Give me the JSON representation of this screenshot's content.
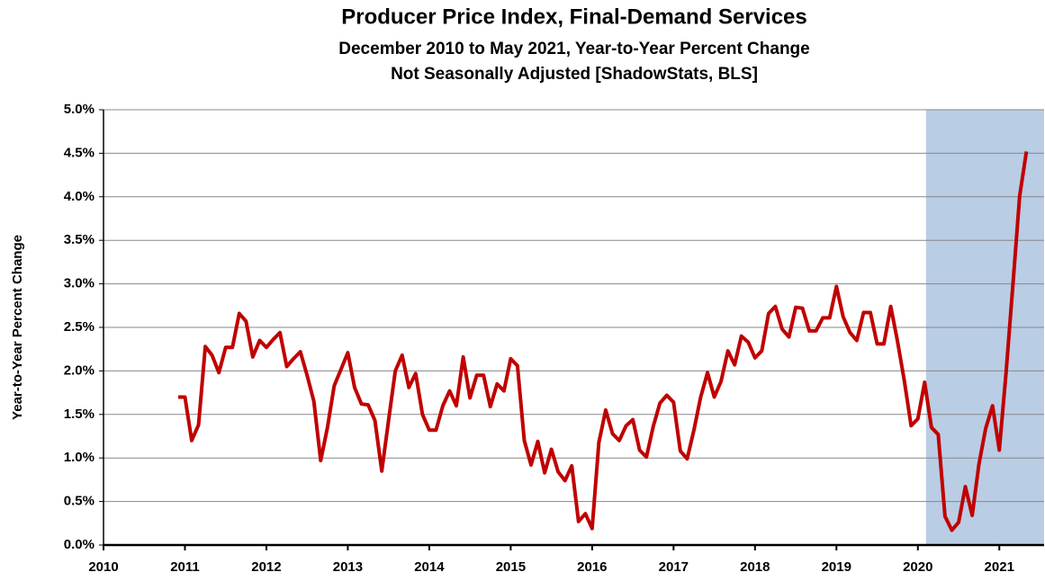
{
  "chart_data": {
    "type": "line",
    "title": "Producer Price Index, Final-Demand Services",
    "subtitle": [
      "December 2010 to May 2021, Year-to-Year Percent Change",
      "Not Seasonally Adjusted  [ShadowStats, BLS]"
    ],
    "y_label": "Year-to-Year Percent Change",
    "x": [
      2010.917,
      2011,
      2011.083,
      2011.167,
      2011.25,
      2011.333,
      2011.417,
      2011.5,
      2011.583,
      2011.667,
      2011.75,
      2011.833,
      2011.917,
      2012,
      2012.083,
      2012.167,
      2012.25,
      2012.333,
      2012.417,
      2012.5,
      2012.583,
      2012.667,
      2012.75,
      2012.833,
      2012.917,
      2013,
      2013.083,
      2013.167,
      2013.25,
      2013.333,
      2013.417,
      2013.5,
      2013.583,
      2013.667,
      2013.75,
      2013.833,
      2013.917,
      2014,
      2014.083,
      2014.167,
      2014.25,
      2014.333,
      2014.417,
      2014.5,
      2014.583,
      2014.667,
      2014.75,
      2014.833,
      2014.917,
      2015,
      2015.083,
      2015.167,
      2015.25,
      2015.333,
      2015.417,
      2015.5,
      2015.583,
      2015.667,
      2015.75,
      2015.833,
      2015.917,
      2016,
      2016.083,
      2016.167,
      2016.25,
      2016.333,
      2016.417,
      2016.5,
      2016.583,
      2016.667,
      2016.75,
      2016.833,
      2016.917,
      2017,
      2017.083,
      2017.167,
      2017.25,
      2017.333,
      2017.417,
      2017.5,
      2017.583,
      2017.667,
      2017.75,
      2017.833,
      2017.917,
      2018,
      2018.083,
      2018.167,
      2018.25,
      2018.333,
      2018.417,
      2018.5,
      2018.583,
      2018.667,
      2018.75,
      2018.833,
      2018.917,
      2019,
      2019.083,
      2019.167,
      2019.25,
      2019.333,
      2019.417,
      2019.5,
      2019.583,
      2019.667,
      2019.75,
      2019.833,
      2019.917,
      2020,
      2020.083,
      2020.167,
      2020.25,
      2020.333,
      2020.417,
      2020.5,
      2020.583,
      2020.667,
      2020.75,
      2020.833,
      2020.917,
      2021,
      2021.083,
      2021.167,
      2021.25,
      2021.333
    ],
    "series": [
      {
        "name": "PPI Final-Demand Services",
        "color": "#c00000",
        "values": [
          1.7,
          1.7,
          1.2,
          1.38,
          2.28,
          2.18,
          1.98,
          2.27,
          2.27,
          2.66,
          2.57,
          2.16,
          2.35,
          2.27,
          2.36,
          2.44,
          2.05,
          2.14,
          2.22,
          1.95,
          1.65,
          0.97,
          1.35,
          1.83,
          2.02,
          2.21,
          1.81,
          1.62,
          1.61,
          1.43,
          0.85,
          1.43,
          2.0,
          2.18,
          1.81,
          1.97,
          1.5,
          1.32,
          1.32,
          1.6,
          1.77,
          1.6,
          2.16,
          1.69,
          1.95,
          1.95,
          1.59,
          1.85,
          1.77,
          2.14,
          2.06,
          1.2,
          0.92,
          1.19,
          0.83,
          1.1,
          0.84,
          0.74,
          0.91,
          0.27,
          0.36,
          0.19,
          1.18,
          1.55,
          1.28,
          1.2,
          1.37,
          1.44,
          1.09,
          1.01,
          1.36,
          1.63,
          1.72,
          1.64,
          1.08,
          0.99,
          1.32,
          1.7,
          1.98,
          1.7,
          1.88,
          2.23,
          2.07,
          2.4,
          2.33,
          2.15,
          2.23,
          2.66,
          2.74,
          2.48,
          2.39,
          2.73,
          2.72,
          2.46,
          2.46,
          2.61,
          2.61,
          2.97,
          2.62,
          2.44,
          2.35,
          2.67,
          2.67,
          2.31,
          2.31,
          2.74,
          2.34,
          1.89,
          1.37,
          1.45,
          1.87,
          1.35,
          1.27,
          0.33,
          0.17,
          0.26,
          0.67,
          0.34,
          0.93,
          1.34,
          1.6,
          1.09,
          1.98,
          2.99,
          4.01,
          4.52
        ]
      }
    ],
    "xlim": [
      2010,
      2021.55
    ],
    "xticks": [
      2010,
      2011,
      2012,
      2013,
      2014,
      2015,
      2016,
      2017,
      2018,
      2019,
      2020,
      2021
    ],
    "ylim": [
      0,
      5
    ],
    "yticks": [
      {
        "value": 0,
        "label": "0.0%"
      },
      {
        "value": 0.5,
        "label": "0.5%"
      },
      {
        "value": 1,
        "label": "1.0%"
      },
      {
        "value": 1.5,
        "label": "1.5%"
      },
      {
        "value": 2,
        "label": "2.0%"
      },
      {
        "value": 2.5,
        "label": "2.5%"
      },
      {
        "value": 3,
        "label": "3.0%"
      },
      {
        "value": 3.5,
        "label": "3.5%"
      },
      {
        "value": 4,
        "label": "4.0%"
      },
      {
        "value": 4.5,
        "label": "4.5%"
      },
      {
        "value": 5,
        "label": "5.0%"
      }
    ],
    "grid": true,
    "shaded_region": {
      "from": 2020.1,
      "to": 2021.55,
      "color": "#b9cde5"
    }
  }
}
